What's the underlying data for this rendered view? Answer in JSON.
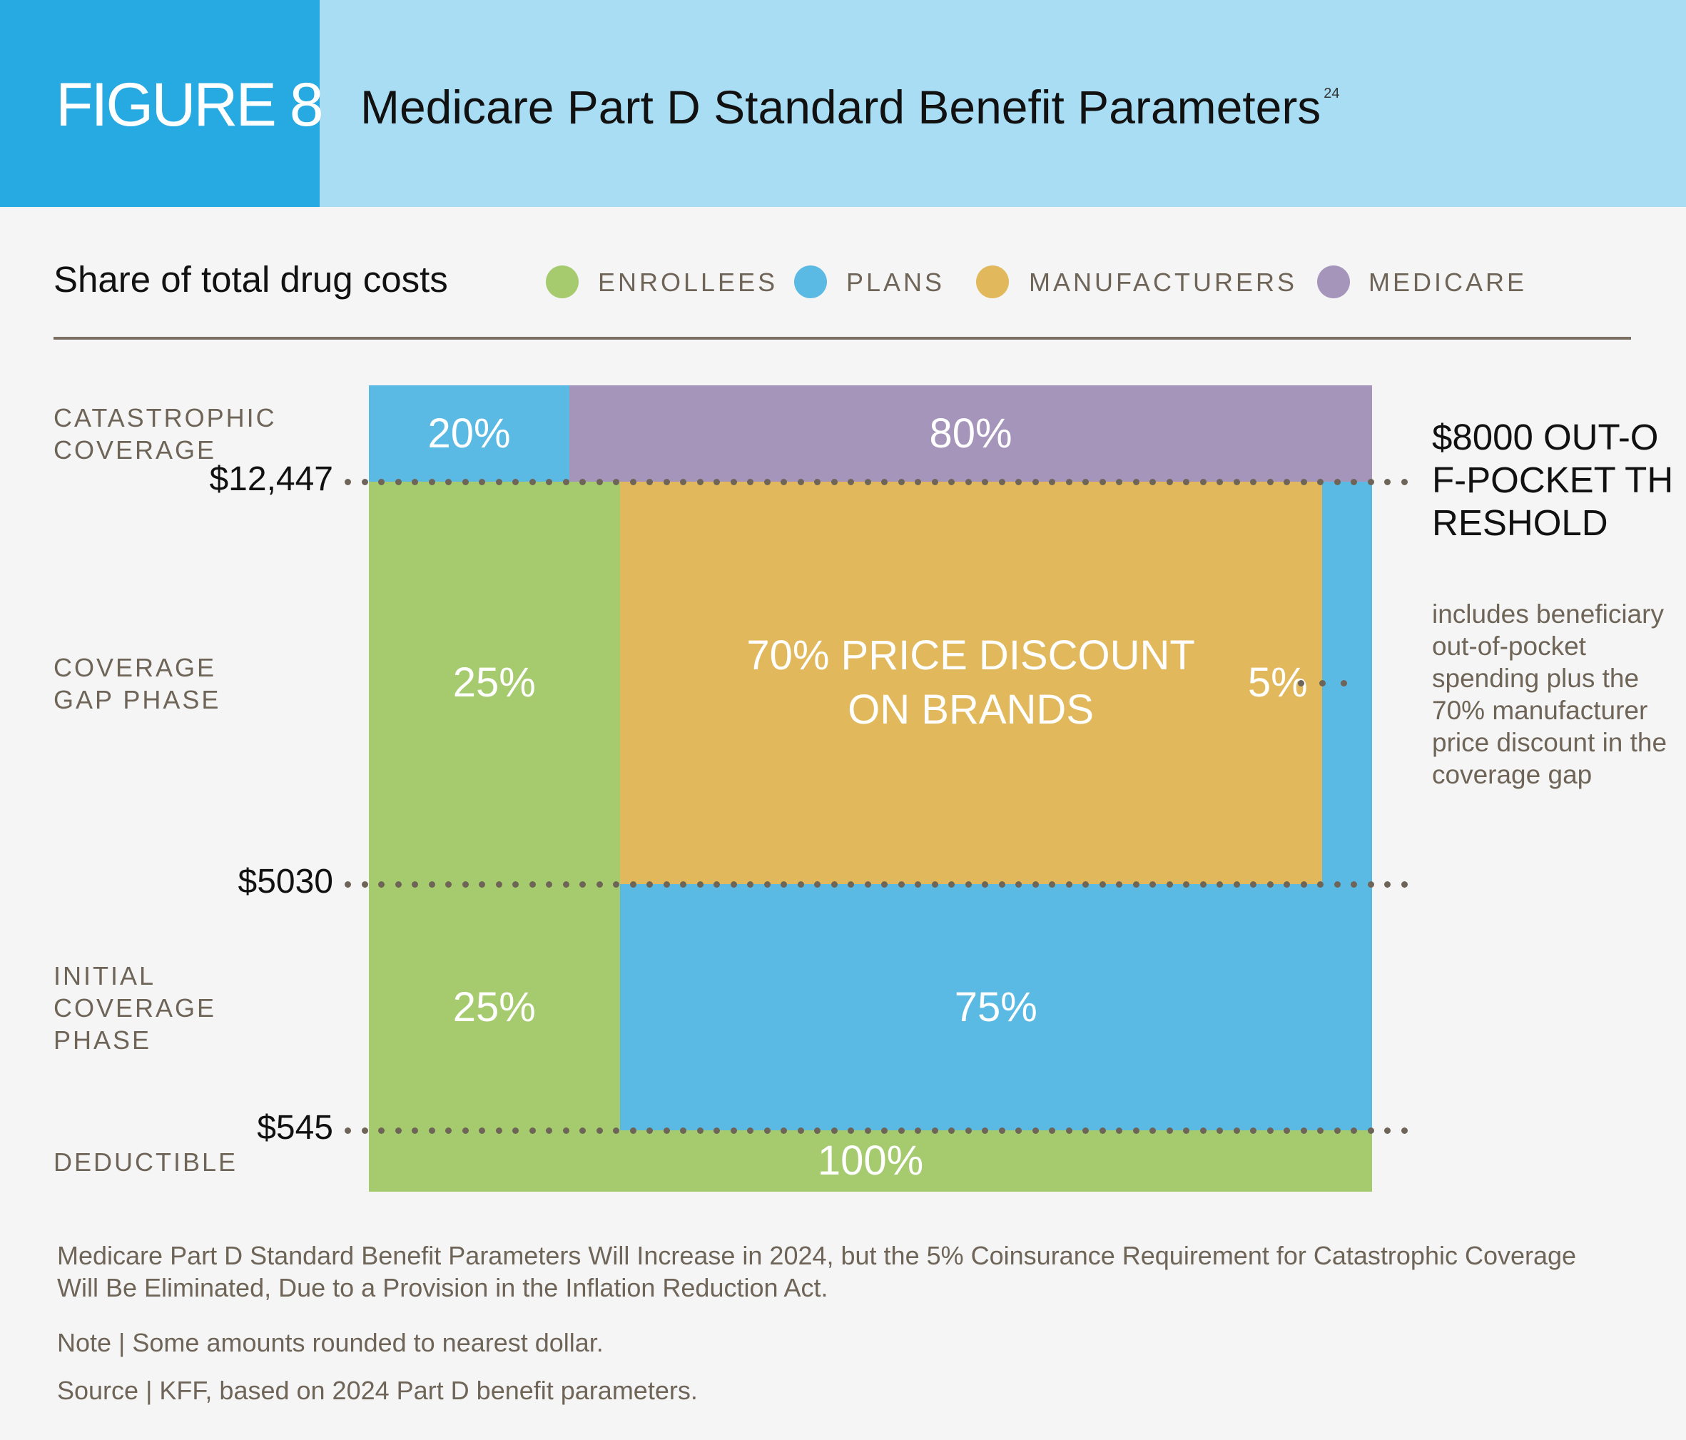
{
  "header": {
    "figure_label": "FIGURE 8",
    "title": "Medicare Part D Standard Benefit Parameters",
    "footnote_ref": "24"
  },
  "colors": {
    "enrollees": "#a6cb6e",
    "plans": "#5abae3",
    "manufacturers": "#e1b95c",
    "medicare": "#a595bb",
    "header_dark": "#27a9e1",
    "header_light": "#a9ddf3"
  },
  "chart_data": {
    "type": "bar",
    "subtitle": "Share of total drug costs",
    "legend": [
      "ENROLLEES",
      "PLANS",
      "MANUFACTURERS",
      "MEDICARE"
    ],
    "thresholds": [
      "$12,447",
      "$5030",
      "$545"
    ],
    "phases": [
      {
        "name": "CATASTROPHIC\nCOVERAGE",
        "segments": [
          {
            "payer": "plans",
            "share": 20,
            "label": "20%"
          },
          {
            "payer": "medicare",
            "share": 80,
            "label": "80%"
          }
        ]
      },
      {
        "name": "COVERAGE\nGAP PHASE",
        "segments": [
          {
            "payer": "enrollees",
            "share": 25,
            "label": "25%"
          },
          {
            "payer": "manufacturers",
            "share": 70,
            "label": "70% PRICE DISCOUNT ON BRANDS"
          },
          {
            "payer": "plans",
            "share": 5,
            "label": "5%"
          }
        ]
      },
      {
        "name": "INITIAL\nCOVERAGE\nPHASE",
        "segments": [
          {
            "payer": "enrollees",
            "share": 25,
            "label": "25%"
          },
          {
            "payer": "plans",
            "share": 75,
            "label": "75%"
          }
        ]
      },
      {
        "name": "DEDUCTIBLE",
        "segments": [
          {
            "payer": "enrollees",
            "share": 100,
            "label": "100%"
          }
        ]
      }
    ],
    "annotation": {
      "heading": "$8000 OUT-OF-POCKET THRESHOLD",
      "note": "includes beneficiary out-of-pocket spending plus the 70% manufacturer price discount in the coverage gap"
    }
  },
  "footer": {
    "caption": "Medicare Part D Standard Benefit Parameters Will Increase in 2024, but the 5% Coinsurance Requirement for Catastrophic Coverage Will Be Eliminated, Due to a Provision in the Inflation Reduction Act.",
    "note": "Note | Some amounts rounded to nearest dollar.",
    "source": "Source | KFF, based on 2024 Part D benefit parameters."
  }
}
